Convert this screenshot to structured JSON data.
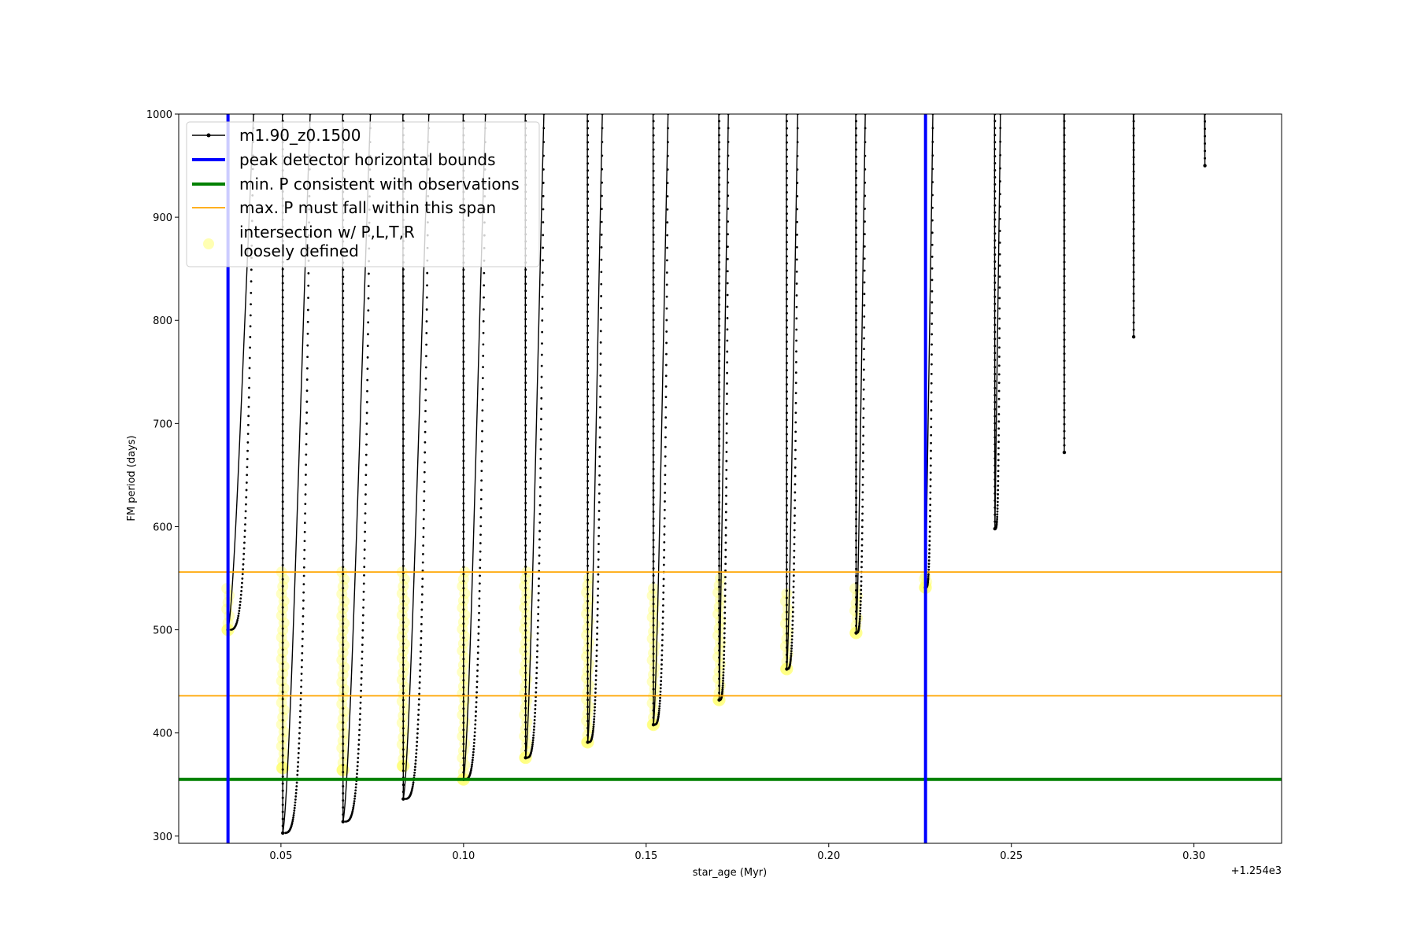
{
  "chart_data": {
    "type": "line",
    "xlabel": "star_age (Myr)",
    "ylabel": "FM period (days)",
    "x_offset_label": "+1.254e3",
    "xlim": [
      0.022,
      0.324
    ],
    "ylim": [
      293,
      1000
    ],
    "x_ticks": [
      {
        "value": 0.05,
        "label": "0.05"
      },
      {
        "value": 0.1,
        "label": "0.10"
      },
      {
        "value": 0.15,
        "label": "0.15"
      },
      {
        "value": 0.2,
        "label": "0.20"
      },
      {
        "value": 0.25,
        "label": "0.25"
      },
      {
        "value": 0.3,
        "label": "0.30"
      }
    ],
    "y_ticks": [
      {
        "value": 300,
        "label": "300"
      },
      {
        "value": 400,
        "label": "400"
      },
      {
        "value": 500,
        "label": "500"
      },
      {
        "value": 600,
        "label": "600"
      },
      {
        "value": 700,
        "label": "700"
      },
      {
        "value": 800,
        "label": "800"
      },
      {
        "value": 900,
        "label": "900"
      },
      {
        "value": 1000,
        "label": "1000"
      }
    ],
    "legend_position": "top-left",
    "legend": [
      {
        "label": "m1.90_z0.1500",
        "kind": "line-marker",
        "color": "#000000"
      },
      {
        "label": "peak detector horizontal bounds",
        "kind": "line",
        "color": "#0000ff"
      },
      {
        "label": "min. P consistent with observations",
        "kind": "line",
        "color": "#008000"
      },
      {
        "label": "max. P must fall within this span",
        "kind": "line",
        "color": "#ffa500"
      },
      {
        "label": "intersection w/ P,L,T,R",
        "label2": "loosely defined",
        "kind": "circle",
        "color": "#ffff66"
      }
    ],
    "vlines": [
      {
        "series": "peak detector horizontal bounds",
        "x": 0.0355,
        "color": "#0000ff"
      },
      {
        "series": "peak detector horizontal bounds",
        "x": 0.2265,
        "color": "#0000ff"
      }
    ],
    "hlines": [
      {
        "series": "min. P consistent with observations",
        "y": 355,
        "color": "#008000"
      },
      {
        "series": "max. P must fall within this span",
        "y": 436,
        "color": "#ffa500"
      },
      {
        "series": "max. P must fall within this span",
        "y": 556,
        "color": "#ffa500"
      }
    ],
    "series": [
      {
        "name": "m1.90_z0.1500",
        "color": "#000000",
        "cycles": [
          {
            "x_drop": 0.0355,
            "y_min": 500,
            "x_return": 0.0425
          },
          {
            "x_drop": 0.0505,
            "y_min": 303,
            "x_return": 0.058
          },
          {
            "x_drop": 0.067,
            "y_min": 314,
            "x_return": 0.0745
          },
          {
            "x_drop": 0.0835,
            "y_min": 336,
            "x_return": 0.0905
          },
          {
            "x_drop": 0.1,
            "y_min": 355,
            "x_return": 0.106
          },
          {
            "x_drop": 0.117,
            "y_min": 376,
            "x_return": 0.122
          },
          {
            "x_drop": 0.134,
            "y_min": 391,
            "x_return": 0.138
          },
          {
            "x_drop": 0.152,
            "y_min": 408,
            "x_return": 0.156
          },
          {
            "x_drop": 0.17,
            "y_min": 432,
            "x_return": 0.1725
          },
          {
            "x_drop": 0.1885,
            "y_min": 462,
            "x_return": 0.1915
          },
          {
            "x_drop": 0.2075,
            "y_min": 497,
            "x_return": 0.21
          },
          {
            "x_drop": 0.2265,
            "y_min": 541,
            "x_return": 0.2285
          },
          {
            "x_drop": 0.2455,
            "y_min": 598,
            "x_return": 0.247
          },
          {
            "x_drop": 0.2645,
            "y_min": 672,
            "x_return": 0.2645
          },
          {
            "x_drop": 0.2835,
            "y_min": 784,
            "x_return": 0.2835
          },
          {
            "x_drop": 0.303,
            "y_min": 950,
            "x_return": 0.303
          }
        ]
      },
      {
        "name": "peak detector horizontal bounds",
        "color": "#0000ff",
        "x": [
          0.0355,
          0.2265
        ]
      },
      {
        "name": "min. P consistent with observations",
        "color": "#008000",
        "y": [
          355
        ]
      },
      {
        "name": "max. P must fall within this span",
        "color": "#ffa500",
        "y": [
          436,
          556
        ]
      },
      {
        "name": "intersection w/ P,L,T,R loosely defined",
        "color": "#ffff66",
        "clusters": [
          {
            "x": 0.0355,
            "y_low": 500,
            "y_high": 540
          },
          {
            "x": 0.0505,
            "y_low": 366,
            "y_high": 556
          },
          {
            "x": 0.067,
            "y_low": 364,
            "y_high": 556
          },
          {
            "x": 0.0835,
            "y_low": 368,
            "y_high": 556
          },
          {
            "x": 0.1,
            "y_low": 355,
            "y_high": 556
          },
          {
            "x": 0.117,
            "y_low": 376,
            "y_high": 556
          },
          {
            "x": 0.134,
            "y_low": 391,
            "y_high": 550
          },
          {
            "x": 0.152,
            "y_low": 408,
            "y_high": 540
          },
          {
            "x": 0.17,
            "y_low": 432,
            "y_high": 550
          },
          {
            "x": 0.1885,
            "y_low": 462,
            "y_high": 535
          },
          {
            "x": 0.2075,
            "y_low": 497,
            "y_high": 540
          },
          {
            "x": 0.2265,
            "y_low": 541,
            "y_high": 552
          }
        ]
      }
    ]
  }
}
